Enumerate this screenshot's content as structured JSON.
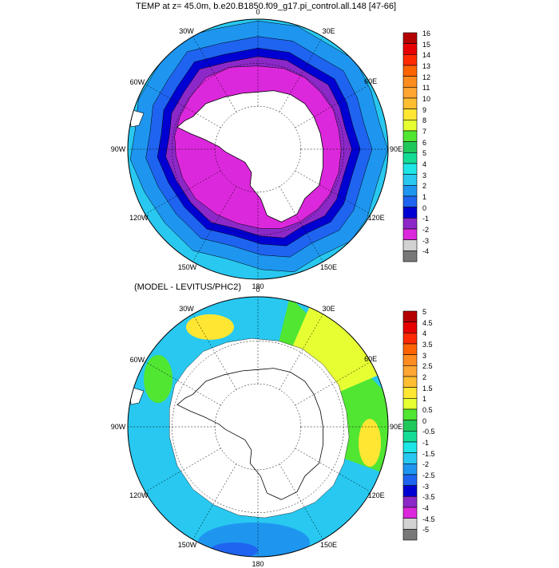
{
  "panels": [
    {
      "title": "TEMP at z=  45.0m, b.e20.B1850.f09_g17.pi_control.all.148 [47-66]",
      "lon_labels": [
        "0",
        "30E",
        "60E",
        "90E",
        "120E",
        "150E",
        "180",
        "150W",
        "120W",
        "90W",
        "60W",
        "30W"
      ],
      "colorbar": {
        "levels": [
          "16",
          "15",
          "14",
          "13",
          "12",
          "11",
          "10",
          "9",
          "8",
          "7",
          "6",
          "5",
          "4",
          "3",
          "2",
          "1",
          "0",
          "-1",
          "-2",
          "-3",
          "-4"
        ],
        "colors": [
          "#b40000",
          "#e60000",
          "#ff2a00",
          "#ff6400",
          "#ff8c1e",
          "#ffa532",
          "#ffbe32",
          "#ffe632",
          "#e6ff32",
          "#50e632",
          "#1ec85a",
          "#14dc96",
          "#1ee6e6",
          "#28c8f0",
          "#1e96f0",
          "#1e64f0",
          "#0000d2",
          "#8c28c8",
          "#dc28dc",
          "#d2d2d2",
          "#787878"
        ]
      }
    },
    {
      "title": "(MODEL - LEVITUS/PHC2)",
      "lon_labels": [
        "0",
        "30E",
        "60E",
        "90E",
        "120E",
        "150E",
        "180",
        "150W",
        "120W",
        "90W",
        "60W",
        "30W"
      ],
      "colorbar": {
        "levels": [
          "5",
          "4.5",
          "4",
          "3.5",
          "3",
          "2.5",
          "2",
          "1.5",
          "1",
          "0.5",
          "0",
          "-0.5",
          "-1",
          "-1.5",
          "-2",
          "-2.5",
          "-3",
          "-3.5",
          "-4",
          "-4.5",
          "-5"
        ],
        "colors": [
          "#b40000",
          "#e60000",
          "#ff2a00",
          "#ff6400",
          "#ff8c1e",
          "#ffa532",
          "#ffbe32",
          "#ffe632",
          "#e6ff32",
          "#50e632",
          "#1ec85a",
          "#14dc96",
          "#1ee6e6",
          "#28c8f0",
          "#1e96f0",
          "#1e64f0",
          "#0000d2",
          "#8c28c8",
          "#dc28dc",
          "#d2d2d2",
          "#787878"
        ]
      }
    }
  ]
}
